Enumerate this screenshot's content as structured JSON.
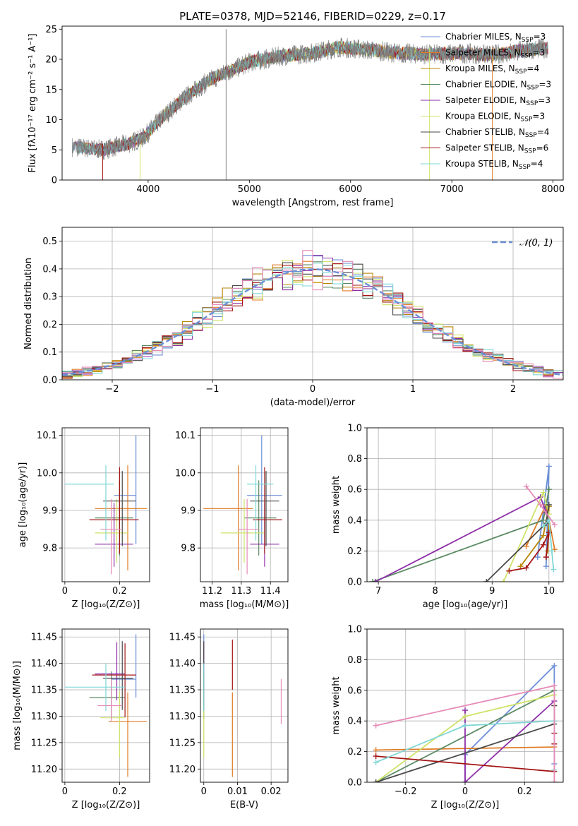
{
  "figure": {
    "title": "PLATE=0378, MJD=52146, FIBERID=0229, z=0.17"
  },
  "colors": {
    "Chabrier MILES": "#6b8fd6",
    "Salpeter MILES": "#e07b24",
    "Kroupa MILES": "#b8860b",
    "Chabrier ELODIE": "#5b8a63",
    "Salpeter ELODIE": "#8e2fa8",
    "Kroupa ELODIE": "#cfe36a",
    "Chabrier STELIB": "#4a4a4a",
    "Salpeter STELIB": "#a31515",
    "Kroupa STELIB": "#7fd6d6",
    "Kroupa STELIB alt": "#e68bb8",
    "data": "#808080",
    "normal": "#6b8fd6"
  },
  "chart_data": [
    {
      "id": "spectrum",
      "type": "line",
      "xlabel": "wavelength [Angstrom, rest frame]",
      "ylabel": "Flux [fλ10⁻¹⁷ erg cm⁻² s⁻¹ A⁻¹]",
      "xlim": [
        3150,
        8100
      ],
      "ylim": [
        0,
        25.5
      ],
      "xticks": [
        4000,
        5000,
        6000,
        7000,
        8000
      ],
      "yticks": [
        0,
        5,
        10,
        15,
        20,
        25
      ],
      "grid": false,
      "legend_position": "top-right",
      "continuum": {
        "x": [
          3250,
          3550,
          3800,
          3950,
          4150,
          4350,
          4600,
          4800,
          5000,
          5300,
          5600,
          5900,
          6200,
          6500,
          6800,
          7100,
          7400,
          7700,
          7900
        ],
        "y": [
          5.5,
          5.0,
          6.0,
          7.0,
          10.5,
          13.5,
          16.5,
          18.0,
          19.5,
          20.5,
          21.0,
          22.0,
          21.5,
          21.0,
          20.8,
          21.0,
          20.7,
          21.5,
          21.8
        ]
      },
      "series": [
        {
          "name": "Chabrier MILES, N",
          "sub": "SSP",
          "suffix": "=3"
        },
        {
          "name": "Salpeter MILES, N",
          "sub": "SSP",
          "suffix": "=3"
        },
        {
          "name": "Kroupa MILES, N",
          "sub": "SSP",
          "suffix": "=4"
        },
        {
          "name": "Chabrier ELODIE, N",
          "sub": "SSP",
          "suffix": "=3"
        },
        {
          "name": "Salpeter ELODIE, N",
          "sub": "SSP",
          "suffix": "=3"
        },
        {
          "name": "Kroupa ELODIE, N",
          "sub": "SSP",
          "suffix": "=3"
        },
        {
          "name": "Chabrier STELIB, N",
          "sub": "SSP",
          "suffix": "=4"
        },
        {
          "name": "Salpeter STELIB, N",
          "sub": "SSP",
          "suffix": "=6"
        },
        {
          "name": "Kroupa STELIB, N",
          "sub": "SSP",
          "suffix": "=4"
        }
      ]
    },
    {
      "id": "residuals",
      "type": "histogram",
      "xlabel": "(data-model)/error",
      "ylabel": "Normed distribution",
      "xlim": [
        -2.5,
        2.5
      ],
      "ylim": [
        0,
        0.55
      ],
      "xticks": [
        -2,
        -1,
        0,
        1,
        2
      ],
      "yticks": [
        0.0,
        0.1,
        0.2,
        0.3,
        0.4,
        0.5
      ],
      "grid": true,
      "legend_position": "top-right",
      "legend": "𝒩(0, 1)",
      "bin_width": 0.1
    },
    {
      "id": "age_vs_Z",
      "type": "errorbar",
      "xlabel": "Z [log₁₀(Z/Z⊙)]",
      "ylabel": "age  [log₁₀(age/yr)]",
      "xlim": [
        -0.01,
        0.31
      ],
      "ylim": [
        9.71,
        10.12
      ],
      "xticks": [
        0.0,
        0.2
      ],
      "yticks": [
        9.8,
        9.9,
        10.0,
        10.1
      ],
      "points": [
        {
          "s": "Chabrier MILES",
          "x": 0.26,
          "y": 9.94,
          "xerr": [
            0.08,
            0.0
          ],
          "yerr": [
            0.13,
            0.16
          ]
        },
        {
          "s": "Salpeter MILES",
          "x": 0.23,
          "y": 9.905,
          "xerr": [
            0.12,
            0.07
          ],
          "yerr": [
            0.165,
            0.115
          ]
        },
        {
          "s": "Chabrier ELODIE",
          "x": 0.2,
          "y": 9.88,
          "xerr": [
            0.09,
            0.05
          ],
          "yerr": [
            0.1,
            0.1
          ]
        },
        {
          "s": "Salpeter ELODIE",
          "x": 0.18,
          "y": 9.81,
          "xerr": [
            0.07,
            0.07
          ],
          "yerr": [
            0.06,
            0.11
          ]
        },
        {
          "s": "Kroupa ELODIE",
          "x": 0.19,
          "y": 9.84,
          "xerr": [
            0.08,
            0.04
          ],
          "yerr": [
            0.08,
            0.09
          ]
        },
        {
          "s": "Chabrier STELIB",
          "x": 0.21,
          "y": 9.925,
          "xerr": [
            0.07,
            0.05
          ],
          "yerr": [
            0.12,
            0.08
          ]
        },
        {
          "s": "Salpeter STELIB",
          "x": 0.2,
          "y": 9.875,
          "xerr": [
            0.11,
            0.07
          ],
          "yerr": [
            0.09,
            0.14
          ]
        },
        {
          "s": "Kroupa STELIB",
          "x": 0.15,
          "y": 9.97,
          "xerr": [
            0.15,
            0.03
          ],
          "yerr": [
            0.15,
            0.05
          ]
        },
        {
          "s": "Kroupa STELIB alt",
          "x": 0.17,
          "y": 9.85,
          "xerr": [
            0.04,
            0.04
          ],
          "yerr": [
            0.12,
            0.08
          ]
        }
      ]
    },
    {
      "id": "age_vs_mass",
      "type": "errorbar",
      "xlabel": "mass [log₁₀(M/M⊙)]",
      "ylabel": "",
      "xlim": [
        11.16,
        11.46
      ],
      "ylim": [
        9.71,
        10.12
      ],
      "xticks": [
        11.2,
        11.3,
        11.4
      ],
      "yticks": [
        9.8,
        9.9,
        10.0,
        10.1
      ],
      "points": [
        {
          "s": "Chabrier MILES",
          "x": 11.37,
          "y": 9.94,
          "xerr": [
            0.05,
            0.07
          ],
          "yerr": [
            0.13,
            0.16
          ]
        },
        {
          "s": "Salpeter MILES",
          "x": 11.29,
          "y": 9.905,
          "xerr": [
            0.12,
            0.05
          ],
          "yerr": [
            0.165,
            0.115
          ]
        },
        {
          "s": "Chabrier ELODIE",
          "x": 11.36,
          "y": 9.88,
          "xerr": [
            0.05,
            0.06
          ],
          "yerr": [
            0.1,
            0.1
          ]
        },
        {
          "s": "Salpeter ELODIE",
          "x": 11.38,
          "y": 9.81,
          "xerr": [
            0.05,
            0.05
          ],
          "yerr": [
            0.06,
            0.11
          ]
        },
        {
          "s": "Kroupa ELODIE",
          "x": 11.31,
          "y": 9.84,
          "xerr": [
            0.08,
            0.07
          ],
          "yerr": [
            0.08,
            0.09
          ]
        },
        {
          "s": "Chabrier STELIB",
          "x": 11.385,
          "y": 9.925,
          "xerr": [
            0.055,
            0.045
          ],
          "yerr": [
            0.12,
            0.08
          ]
        },
        {
          "s": "Salpeter STELIB",
          "x": 11.38,
          "y": 9.875,
          "xerr": [
            0.04,
            0.06
          ],
          "yerr": [
            0.09,
            0.14
          ]
        },
        {
          "s": "Kroupa STELIB",
          "x": 11.35,
          "y": 9.97,
          "xerr": [
            0.03,
            0.06
          ],
          "yerr": [
            0.15,
            0.05
          ]
        },
        {
          "s": "Kroupa STELIB alt",
          "x": 11.32,
          "y": 9.85,
          "xerr": [
            0.03,
            0.04
          ],
          "yerr": [
            0.12,
            0.08
          ]
        }
      ]
    },
    {
      "id": "weight_vs_age",
      "type": "line",
      "xlabel": "age  [log₁₀(age/yr)]",
      "ylabel": "mass weight",
      "xlim": [
        6.8,
        10.25
      ],
      "ylim": [
        0,
        1.0
      ],
      "xticks": [
        7,
        8,
        9,
        10
      ],
      "yticks": [
        0.0,
        0.2,
        0.4,
        0.6,
        0.8,
        1.0
      ],
      "grid": true,
      "series": [
        {
          "s": "Chabrier MILES",
          "x": [
            9.8,
            10.0,
            9.95
          ],
          "y": [
            0.16,
            0.75,
            0.1
          ]
        },
        {
          "s": "Salpeter MILES",
          "x": [
            9.6,
            9.95,
            10.1
          ],
          "y": [
            0.23,
            0.5,
            0.21
          ]
        },
        {
          "s": "Kroupa MILES",
          "x": [
            9.5,
            9.9,
            10.0,
            9.98
          ],
          "y": [
            0.1,
            0.3,
            0.49,
            0.2
          ]
        },
        {
          "s": "Chabrier ELODIE",
          "x": [
            6.9,
            9.9,
            10.0
          ],
          "y": [
            0.0,
            0.4,
            0.6
          ]
        },
        {
          "s": "Salpeter ELODIE",
          "x": [
            6.95,
            9.85,
            9.95
          ],
          "y": [
            0.0,
            0.55,
            0.45
          ]
        },
        {
          "s": "Kroupa ELODIE",
          "x": [
            9.2,
            9.9,
            10.0
          ],
          "y": [
            0.0,
            0.58,
            0.44
          ]
        },
        {
          "s": "Chabrier STELIB",
          "x": [
            8.9,
            9.95,
            10.0
          ],
          "y": [
            0.0,
            0.38,
            0.5
          ]
        },
        {
          "s": "Salpeter STELIB",
          "x": [
            9.3,
            9.6,
            9.9,
            10.0,
            9.95
          ],
          "y": [
            0.07,
            0.09,
            0.24,
            0.32,
            0.16
          ]
        },
        {
          "s": "Kroupa STELIB",
          "x": [
            9.9,
            10.0,
            10.05,
            10.08
          ],
          "y": [
            0.36,
            0.4,
            0.2,
            0.08
          ]
        },
        {
          "s": "Kroupa STELIB alt",
          "x": [
            9.6,
            9.85,
            10.1
          ],
          "y": [
            0.62,
            0.5,
            0.37
          ]
        }
      ]
    },
    {
      "id": "mass_vs_Z",
      "type": "errorbar",
      "xlabel": "Z [log₁₀(Z/Z⊙)]",
      "ylabel": "mass [log₁₀(M/M⊙)]",
      "xlim": [
        -0.01,
        0.31
      ],
      "ylim": [
        11.175,
        11.465
      ],
      "xticks": [
        0.0,
        0.2
      ],
      "yticks": [
        11.2,
        11.25,
        11.3,
        11.35,
        11.4,
        11.45
      ],
      "points": [
        {
          "s": "Chabrier MILES",
          "x": 0.26,
          "y": 11.37,
          "xerr": [
            0.09,
            0.0
          ],
          "yerr": [
            0.035,
            0.085
          ]
        },
        {
          "s": "Salpeter MILES",
          "x": 0.23,
          "y": 11.29,
          "xerr": [
            0.07,
            0.07
          ],
          "yerr": [
            0.105,
            0.055
          ]
        },
        {
          "s": "Chabrier ELODIE",
          "x": 0.17,
          "y": 11.335,
          "xerr": [
            0.08,
            0.05
          ],
          "yerr": [
            0.04,
            0.05
          ]
        },
        {
          "s": "Salpeter ELODIE",
          "x": 0.19,
          "y": 11.38,
          "xerr": [
            0.08,
            0.03
          ],
          "yerr": [
            0.05,
            0.06
          ]
        },
        {
          "s": "Kroupa ELODIE",
          "x": 0.2,
          "y": 11.297,
          "xerr": [
            0.07,
            0.02
          ],
          "yerr": [
            0.075,
            0.05
          ]
        },
        {
          "s": "Chabrier STELIB",
          "x": 0.21,
          "y": 11.372,
          "xerr": [
            0.07,
            0.04
          ],
          "yerr": [
            0.06,
            0.07
          ]
        },
        {
          "s": "Salpeter STELIB",
          "x": 0.22,
          "y": 11.378,
          "xerr": [
            0.12,
            0.04
          ],
          "yerr": [
            0.08,
            0.06
          ]
        },
        {
          "s": "Kroupa STELIB",
          "x": 0.15,
          "y": 11.355,
          "xerr": [
            0.15,
            0.07
          ],
          "yerr": [
            0.045,
            0.045
          ]
        },
        {
          "s": "Kroupa STELIB alt",
          "x": 0.17,
          "y": 11.32,
          "xerr": [
            0.05,
            0.04
          ],
          "yerr": [
            0.03,
            0.05
          ]
        }
      ]
    },
    {
      "id": "mass_vs_EBV",
      "type": "errorbar",
      "xlabel": "E(B-V)",
      "ylabel": "",
      "xlim": [
        -0.001,
        0.025
      ],
      "ylim": [
        11.175,
        11.465
      ],
      "xticks": [
        0.0,
        0.01,
        0.02
      ],
      "yticks": [
        11.2,
        11.25,
        11.3,
        11.35,
        11.4,
        11.45
      ],
      "points": [
        {
          "s": "Chabrier MILES",
          "x": 0.0,
          "y": 11.37,
          "xerr": [
            0,
            0
          ],
          "yerr": [
            0.035,
            0.085
          ]
        },
        {
          "s": "Salpeter MILES",
          "x": 0.0085,
          "y": 11.29,
          "xerr": [
            0,
            0
          ],
          "yerr": [
            0.105,
            0.055
          ]
        },
        {
          "s": "Chabrier ELODIE",
          "x": 0.0,
          "y": 11.335,
          "xerr": [
            0,
            0
          ],
          "yerr": [
            0.04,
            0.05
          ]
        },
        {
          "s": "Salpeter ELODIE",
          "x": 0.0,
          "y": 11.38,
          "xerr": [
            0,
            0
          ],
          "yerr": [
            0.05,
            0.06
          ]
        },
        {
          "s": "Kroupa ELODIE",
          "x": 0.0,
          "y": 11.297,
          "xerr": [
            0,
            0
          ],
          "yerr": [
            0.075,
            0.05
          ]
        },
        {
          "s": "Chabrier STELIB",
          "x": 0.0,
          "y": 11.372,
          "xerr": [
            0,
            0
          ],
          "yerr": [
            0.06,
            0.07
          ]
        },
        {
          "s": "Salpeter STELIB",
          "x": 0.0085,
          "y": 11.395,
          "xerr": [
            0,
            0
          ],
          "yerr": [
            0.045,
            0.05
          ]
        },
        {
          "s": "Kroupa STELIB",
          "x": 0.0,
          "y": 11.355,
          "xerr": [
            0,
            0
          ],
          "yerr": [
            0.045,
            0.045
          ]
        },
        {
          "s": "Kroupa STELIB alt",
          "x": 0.023,
          "y": 11.33,
          "xerr": [
            0,
            0
          ],
          "yerr": [
            0.045,
            0.04
          ]
        }
      ]
    },
    {
      "id": "weight_vs_Z",
      "type": "line",
      "xlabel": "Z [log₁₀(Z/Z⊙)]",
      "ylabel": "mass weight",
      "xlim": [
        -0.33,
        0.33
      ],
      "ylim": [
        0,
        1.0
      ],
      "xticks": [
        -0.2,
        0.0,
        0.2
      ],
      "yticks": [
        0.0,
        0.2,
        0.4,
        0.6,
        0.8,
        1.0
      ],
      "grid": true,
      "series": [
        {
          "s": "Chabrier MILES",
          "x": [
            0.0,
            0.0,
            0.3,
            0.3
          ],
          "y": [
            0.0,
            0.18,
            0.76,
            0.12
          ]
        },
        {
          "s": "Salpeter MILES",
          "x": [
            -0.3,
            0.3,
            0.3
          ],
          "y": [
            0.21,
            0.23,
            0.5
          ]
        },
        {
          "s": "Chabrier ELODIE",
          "x": [
            -0.3,
            0.3,
            0.3
          ],
          "y": [
            0.0,
            0.6,
            0.4
          ]
        },
        {
          "s": "Salpeter ELODIE",
          "x": [
            0.0,
            0.0,
            0.3,
            0.3
          ],
          "y": [
            0.47,
            0.0,
            0.53,
            0.0
          ]
        },
        {
          "s": "Kroupa ELODIE",
          "x": [
            -0.3,
            0.0,
            0.3,
            0.3
          ],
          "y": [
            0.0,
            0.43,
            0.57,
            0.0
          ]
        },
        {
          "s": "Chabrier STELIB",
          "x": [
            -0.3,
            0.3,
            0.3
          ],
          "y": [
            0.0,
            0.38,
            0.5
          ]
        },
        {
          "s": "Salpeter STELIB",
          "x": [
            -0.3,
            0.3,
            0.3,
            0.3
          ],
          "y": [
            0.17,
            0.07,
            0.25,
            0.32
          ]
        },
        {
          "s": "Kroupa STELIB",
          "x": [
            -0.3,
            0.0,
            0.3,
            0.3
          ],
          "y": [
            0.13,
            0.37,
            0.4,
            0.08
          ]
        },
        {
          "s": "Kroupa STELIB alt",
          "x": [
            -0.3,
            0.3,
            0.3
          ],
          "y": [
            0.37,
            0.63,
            0.0
          ]
        }
      ]
    }
  ]
}
